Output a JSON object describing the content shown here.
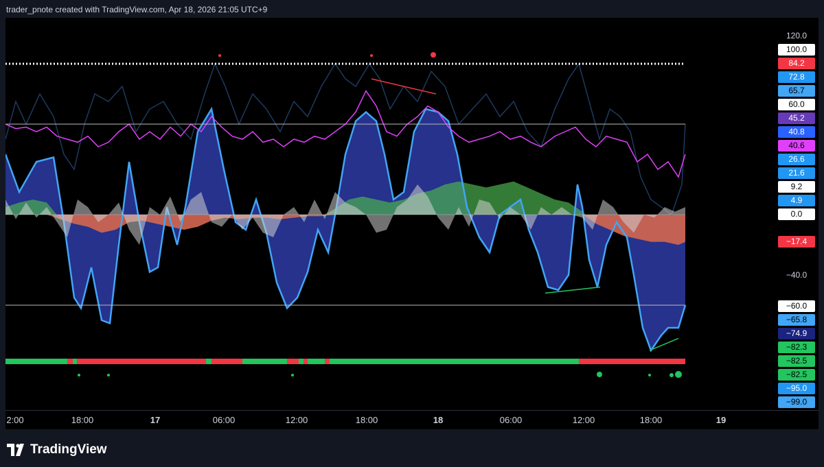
{
  "header": {
    "text": "trader_pnote created with TradingView.com, Apr 18, 2026 21:05 UTC+9"
  },
  "brand": {
    "name": "TradingView",
    "icon": "tradingview-logo-icon"
  },
  "price_axis": {
    "labels": [
      {
        "text": "120.0",
        "bg": "",
        "fg": "#d1d4dc"
      },
      {
        "text": "100.0",
        "bg": "#ffffff",
        "fg": "#000000"
      },
      {
        "text": "84.2",
        "bg": "#f23645",
        "fg": "#ffffff"
      },
      {
        "text": "72.8",
        "bg": "#2196f3",
        "fg": "#ffffff"
      },
      {
        "text": "65.7",
        "bg": "#42a5f5",
        "fg": "#000000"
      },
      {
        "text": "60.0",
        "bg": "#ffffff",
        "fg": "#000000"
      },
      {
        "text": "45.2",
        "bg": "#673ab7",
        "fg": "#ffffff"
      },
      {
        "text": "40.8",
        "bg": "#2962ff",
        "fg": "#ffffff"
      },
      {
        "text": "40.6",
        "bg": "#e040fb",
        "fg": "#000000"
      },
      {
        "text": "26.6",
        "bg": "#2196f3",
        "fg": "#ffffff"
      },
      {
        "text": "21.6",
        "bg": "#2196f3",
        "fg": "#ffffff"
      },
      {
        "text": "9.2",
        "bg": "#ffffff",
        "fg": "#000000"
      },
      {
        "text": "4.9",
        "bg": "#2196f3",
        "fg": "#ffffff"
      },
      {
        "text": "0.0",
        "bg": "#ffffff",
        "fg": "#000000"
      },
      {
        "text": "−17.4",
        "bg": "#f23645",
        "fg": "#ffffff"
      },
      {
        "text": "−40.0",
        "bg": "",
        "fg": "#d1d4dc"
      },
      {
        "text": "−60.0",
        "bg": "#ffffff",
        "fg": "#000000"
      },
      {
        "text": "−65.8",
        "bg": "#42a5f5",
        "fg": "#000000"
      },
      {
        "text": "−74.9",
        "bg": "#1a237e",
        "fg": "#ffffff"
      },
      {
        "text": "−82.3",
        "bg": "#22c55e",
        "fg": "#000000"
      },
      {
        "text": "−82.5",
        "bg": "#22c55e",
        "fg": "#000000"
      },
      {
        "text": "−82.5",
        "bg": "#22c55e",
        "fg": "#000000"
      },
      {
        "text": "−95.0",
        "bg": "#2196f3",
        "fg": "#ffffff"
      },
      {
        "text": "−99.0",
        "bg": "#42a5f5",
        "fg": "#000000"
      }
    ]
  },
  "time_axis": {
    "labels": [
      {
        "text": "2:00",
        "bold": false
      },
      {
        "text": "18:00",
        "bold": false
      },
      {
        "text": "17",
        "bold": true
      },
      {
        "text": "06:00",
        "bold": false
      },
      {
        "text": "12:00",
        "bold": false
      },
      {
        "text": "18:00",
        "bold": false
      },
      {
        "text": "18",
        "bold": true
      },
      {
        "text": "06:00",
        "bold": false
      },
      {
        "text": "12:00",
        "bold": false
      },
      {
        "text": "18:00",
        "bold": false
      },
      {
        "text": "19",
        "bold": true
      }
    ]
  },
  "colors": {
    "background": "#000000",
    "oscillator_fill": "#283593",
    "oscillator_line": "#42a5f5",
    "rsi_line": "#e040fb",
    "bull_fill": "#4caf50",
    "bear_fill": "#ef5350",
    "signal_bull": "#22c55e",
    "signal_bear": "#f23645"
  },
  "chart_data": {
    "type": "line",
    "ylim": [
      -100,
      120
    ],
    "level_lines": [
      100,
      60,
      0,
      -60
    ],
    "series": [],
    "status_strip": [
      "green",
      "red",
      "green",
      "red",
      "green",
      "red",
      "green",
      "red",
      "green",
      "red",
      "green",
      "red",
      "green",
      "red"
    ]
  }
}
